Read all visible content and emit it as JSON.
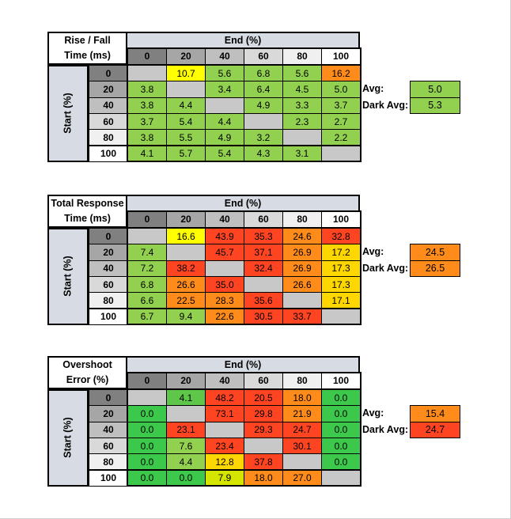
{
  "chart_data": [
    {
      "type": "table",
      "title_lines": [
        "Rise / Fall",
        "Time (ms)"
      ],
      "column_header": "End (%)",
      "row_header": "Start (%)",
      "columns": [
        "0",
        "20",
        "40",
        "60",
        "80",
        "100"
      ],
      "rows": [
        "0",
        "20",
        "40",
        "60",
        "80",
        "100"
      ],
      "values": [
        [
          "",
          "10.7",
          "5.6",
          "6.8",
          "5.6",
          "16.2"
        ],
        [
          "3.8",
          "",
          "3.4",
          "6.4",
          "4.5",
          "5.0"
        ],
        [
          "3.8",
          "4.4",
          "",
          "4.9",
          "3.3",
          "3.7"
        ],
        [
          "3.7",
          "5.4",
          "4.4",
          "",
          "2.3",
          "2.7"
        ],
        [
          "3.8",
          "5.5",
          "4.9",
          "3.2",
          "",
          "2.2"
        ],
        [
          "4.1",
          "5.7",
          "5.4",
          "4.3",
          "3.1",
          ""
        ]
      ],
      "colors": [
        [
          "#c8c8c8",
          "#ffff00",
          "#92d050",
          "#92d050",
          "#92d050",
          "#ff8c1a"
        ],
        [
          "#92d050",
          "#c8c8c8",
          "#92d050",
          "#92d050",
          "#92d050",
          "#92d050"
        ],
        [
          "#92d050",
          "#92d050",
          "#c8c8c8",
          "#92d050",
          "#92d050",
          "#92d050"
        ],
        [
          "#92d050",
          "#92d050",
          "#92d050",
          "#c8c8c8",
          "#92d050",
          "#92d050"
        ],
        [
          "#92d050",
          "#92d050",
          "#92d050",
          "#92d050",
          "#c8c8c8",
          "#92d050"
        ],
        [
          "#92d050",
          "#92d050",
          "#92d050",
          "#92d050",
          "#92d050",
          "#c8c8c8"
        ]
      ],
      "avg_label": "Avg:",
      "avg": "5.0",
      "avg_color": "#92d050",
      "dark_avg_label": "Dark Avg:",
      "dark_avg": "5.3",
      "dark_avg_color": "#92d050"
    },
    {
      "type": "table",
      "title_lines": [
        "Total Response",
        "Time (ms)"
      ],
      "column_header": "End (%)",
      "row_header": "Start (%)",
      "columns": [
        "0",
        "20",
        "40",
        "60",
        "80",
        "100"
      ],
      "rows": [
        "0",
        "20",
        "40",
        "60",
        "80",
        "100"
      ],
      "values": [
        [
          "",
          "16.6",
          "43.9",
          "35.3",
          "24.6",
          "32.8"
        ],
        [
          "7.4",
          "",
          "45.7",
          "37.1",
          "26.9",
          "17.2"
        ],
        [
          "7.2",
          "38.2",
          "",
          "32.4",
          "26.9",
          "17.3"
        ],
        [
          "6.8",
          "26.6",
          "35.0",
          "",
          "26.6",
          "17.3"
        ],
        [
          "6.6",
          "22.5",
          "28.3",
          "35.6",
          "",
          "17.1"
        ],
        [
          "6.7",
          "9.4",
          "22.6",
          "30.5",
          "33.7",
          ""
        ]
      ],
      "colors": [
        [
          "#c8c8c8",
          "#ffff00",
          "#ff4422",
          "#ff4422",
          "#ff8c1a",
          "#ff4422"
        ],
        [
          "#92d050",
          "#c8c8c8",
          "#ff4422",
          "#ff4422",
          "#ff8c1a",
          "#ffd700"
        ],
        [
          "#92d050",
          "#ff4422",
          "#c8c8c8",
          "#ff4422",
          "#ff8c1a",
          "#ffd700"
        ],
        [
          "#92d050",
          "#ff8c1a",
          "#ff4422",
          "#c8c8c8",
          "#ff8c1a",
          "#ffd700"
        ],
        [
          "#92d050",
          "#ff8c1a",
          "#ff8c1a",
          "#ff4422",
          "#c8c8c8",
          "#ffd700"
        ],
        [
          "#92d050",
          "#92d050",
          "#ff8c1a",
          "#ff4422",
          "#ff4422",
          "#c8c8c8"
        ]
      ],
      "avg_label": "Avg:",
      "avg": "24.5",
      "avg_color": "#ff8c1a",
      "dark_avg_label": "Dark Avg:",
      "dark_avg": "26.5",
      "dark_avg_color": "#ff8c1a"
    },
    {
      "type": "table",
      "title_lines": [
        "Overshoot",
        "Error (%)"
      ],
      "column_header": "End (%)",
      "row_header": "Start (%)",
      "columns": [
        "0",
        "20",
        "40",
        "60",
        "80",
        "100"
      ],
      "rows": [
        "0",
        "20",
        "40",
        "60",
        "80",
        "100"
      ],
      "values": [
        [
          "",
          "4.1",
          "48.2",
          "20.5",
          "18.0",
          "0.0"
        ],
        [
          "0.0",
          "",
          "73.1",
          "29.8",
          "21.9",
          "0.0"
        ],
        [
          "0.0",
          "23.1",
          "",
          "29.3",
          "24.7",
          "0.0"
        ],
        [
          "0.0",
          "7.6",
          "23.4",
          "",
          "30.1",
          "0.0"
        ],
        [
          "0.0",
          "4.4",
          "12.8",
          "37.8",
          "",
          "0.0"
        ],
        [
          "0.0",
          "0.0",
          "7.9",
          "18.0",
          "27.0",
          ""
        ]
      ],
      "colors": [
        [
          "#c8c8c8",
          "#5ec648",
          "#ff4422",
          "#ff4422",
          "#ff8c1a",
          "#3cc84a"
        ],
        [
          "#3cc84a",
          "#c8c8c8",
          "#ff4422",
          "#ff4422",
          "#ff8c1a",
          "#3cc84a"
        ],
        [
          "#3cc84a",
          "#ff4422",
          "#c8c8c8",
          "#ff4422",
          "#ff4422",
          "#3cc84a"
        ],
        [
          "#3cc84a",
          "#92d050",
          "#ff4422",
          "#c8c8c8",
          "#ff4422",
          "#3cc84a"
        ],
        [
          "#3cc84a",
          "#92d050",
          "#ffd700",
          "#ff4422",
          "#c8c8c8",
          "#3cc84a"
        ],
        [
          "#3cc84a",
          "#3cc84a",
          "#d4e600",
          "#ff8c1a",
          "#ff8c1a",
          "#c8c8c8"
        ]
      ],
      "avg_label": "Avg:",
      "avg": "15.4",
      "avg_color": "#ff8c1a",
      "dark_avg_label": "Dark Avg:",
      "dark_avg": "24.7",
      "dark_avg_color": "#ff4422"
    }
  ],
  "header_colors": {
    "col": [
      "#808080",
      "#a6a6a6",
      "#bfbfbf",
      "#d9d9d9",
      "#f0f0f0",
      "#ffffff"
    ],
    "row": [
      "#808080",
      "#a6a6a6",
      "#bfbfbf",
      "#d9d9d9",
      "#f0f0f0",
      "#ffffff"
    ]
  }
}
